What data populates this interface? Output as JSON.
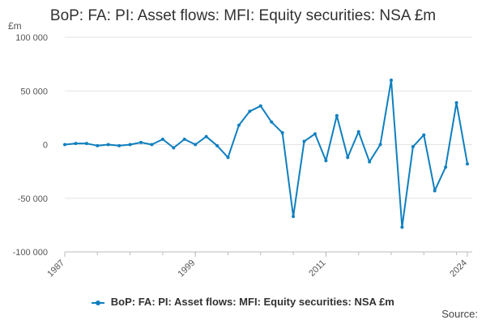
{
  "chart_data": {
    "type": "line",
    "title": "BoP: FA: PI: Asset flows: MFI: Equity securities: NSA £m",
    "ylabel": "£m",
    "xlabel": "",
    "ylim": [
      -100000,
      100000
    ],
    "xlim": [
      1987,
      2024
    ],
    "yticks": [
      -100000,
      -50000,
      0,
      50000,
      100000
    ],
    "ytick_labels": [
      "-100 000",
      "-50 000",
      "0",
      "50 000",
      "100 000"
    ],
    "xticks": [
      1987,
      1999,
      2011,
      2024
    ],
    "xtick_labels": [
      "1987",
      "1999",
      "2011",
      "2024"
    ],
    "grid": "horizontal",
    "legend_position": "bottom",
    "color": "#0f7fbf",
    "x": [
      1987,
      1988,
      1989,
      1990,
      1991,
      1992,
      1993,
      1994,
      1995,
      1996,
      1997,
      1998,
      1999,
      2000,
      2001,
      2002,
      2003,
      2004,
      2005,
      2006,
      2007,
      2008,
      2009,
      2010,
      2011,
      2012,
      2013,
      2014,
      2015,
      2016,
      2017,
      2018,
      2019,
      2020,
      2021,
      2022,
      2023,
      2024
    ],
    "series": [
      {
        "name": "BoP: FA: PI: Asset flows: MFI: Equity securities: NSA £m",
        "values": [
          0,
          1000,
          1000,
          -1000,
          0,
          -1000,
          0,
          2000,
          0,
          5000,
          -3000,
          5000,
          0,
          7500,
          -1000,
          -12000,
          18000,
          31000,
          36000,
          21000,
          11000,
          -67000,
          3000,
          10000,
          -15000,
          27000,
          -12000,
          12000,
          -16000,
          0,
          60000,
          -77000,
          -2000,
          9000,
          -43000,
          -21000,
          39000,
          -18000
        ]
      }
    ]
  },
  "legend": {
    "label": "BoP: FA: PI: Asset flows: MFI: Equity securities: NSA £m"
  },
  "source": {
    "label": "Source:"
  }
}
